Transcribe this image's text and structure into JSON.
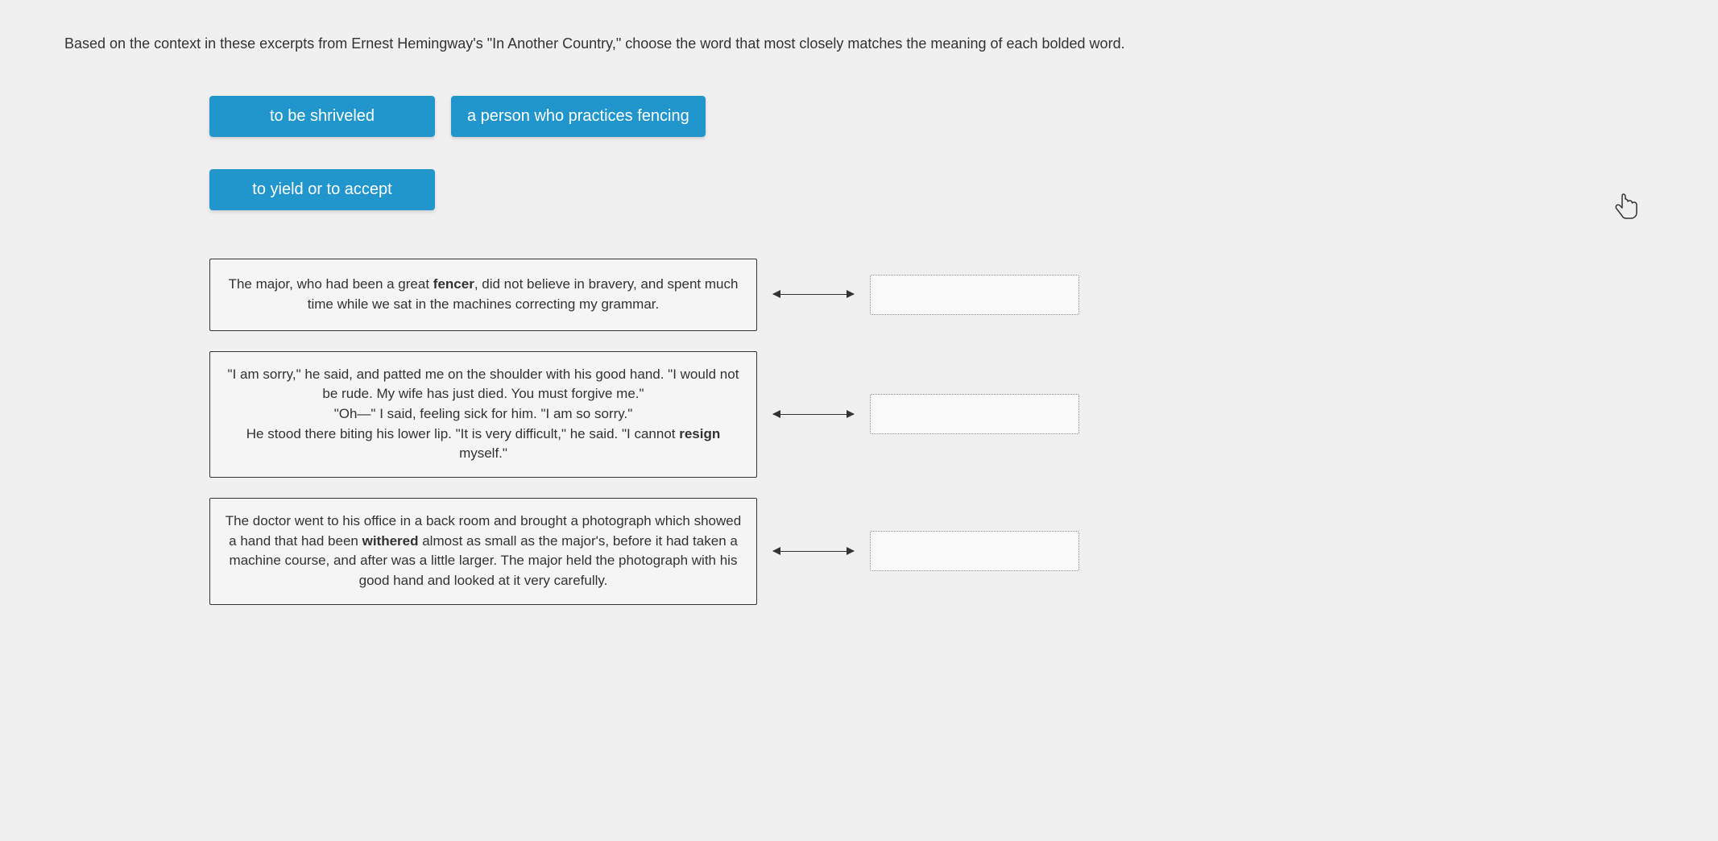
{
  "instructions": "Based on the context in these excerpts from Ernest Hemingway's \"In Another Country,\" choose the word that most closely matches the meaning of each bolded word.",
  "options": [
    {
      "label": "to be shriveled"
    },
    {
      "label": "a person who practices fencing"
    },
    {
      "label": "to yield or to accept"
    }
  ],
  "excerpts": [
    {
      "html": "The major, who had been a great <b>fencer</b>, did not believe in bravery, and spent much time while we sat in the machines correcting my grammar."
    },
    {
      "html": "\"I am sorry,\" he said, and patted me on the shoulder with his good hand. \"I would not be rude. My wife has just died. You must forgive me.\"<br>\"Oh—\" I said, feeling sick for him. \"I am so sorry.\"<br>He stood there biting his lower lip. \"It is very difficult,\" he said. \"I cannot <b>resign</b> myself.\""
    },
    {
      "html": "The doctor went to his office in a back room and brought a photograph which showed a hand that had been <b>withered</b> almost as small as the major's, before it had taken a machine course, and after was a little larger. The major held the photograph with his good hand and looked at it very carefully."
    }
  ],
  "colors": {
    "tile_bg": "#2196cc",
    "tile_text": "#ffffff",
    "page_bg": "#f0f0f0",
    "text": "#333333",
    "border": "#333333",
    "drop_border": "#888888"
  }
}
